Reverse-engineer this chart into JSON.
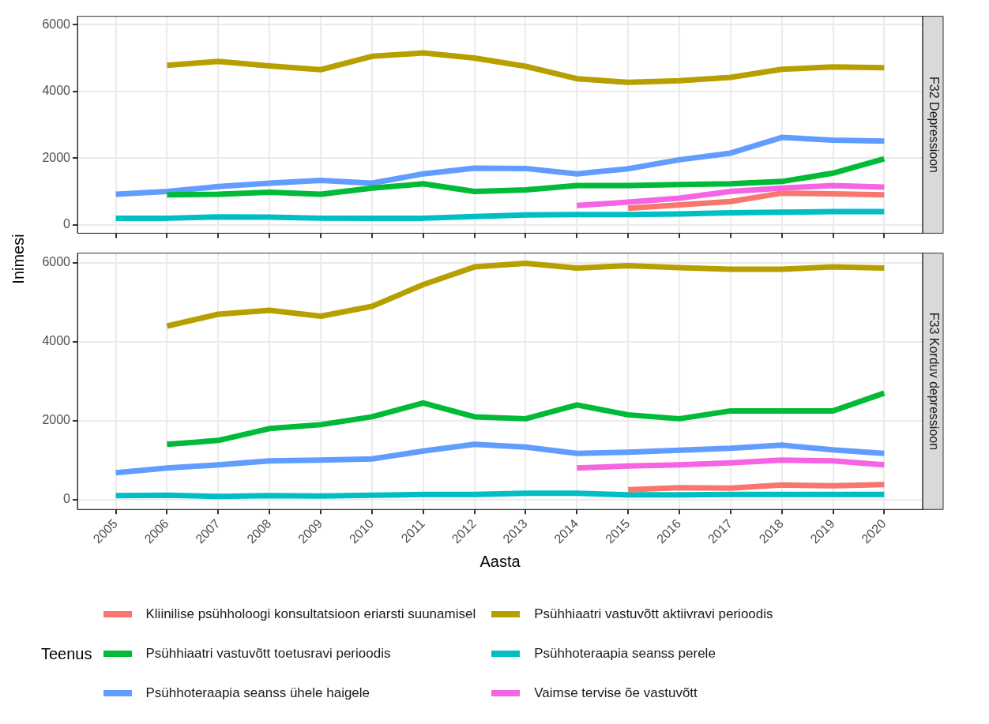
{
  "chart_data": [
    {
      "type": "line",
      "title": "F32 Depressioon",
      "ylabel": "Inimesi",
      "xlim": [
        2004.25,
        2020.75
      ],
      "xticks": [
        2005,
        2006,
        2007,
        2008,
        2009,
        2010,
        2011,
        2012,
        2013,
        2014,
        2015,
        2016,
        2017,
        2018,
        2019,
        2020
      ],
      "ylim": [
        -250,
        6250
      ],
      "yticks": [
        0,
        2000,
        4000,
        6000
      ],
      "tick_labels": "y",
      "grid": true,
      "series": [
        {
          "color": "#f8766d",
          "x": [
            2015,
            2016,
            2017,
            2018,
            2019,
            2020
          ],
          "values": [
            500,
            600,
            700,
            950,
            930,
            900
          ]
        },
        {
          "color": "#b79f00",
          "x": [
            2006,
            2007,
            2008,
            2009,
            2010,
            2011,
            2012,
            2013,
            2014,
            2015,
            2016,
            2017,
            2018,
            2019,
            2020
          ],
          "values": [
            4780,
            4900,
            4760,
            4650,
            5050,
            5150,
            5000,
            4750,
            4380,
            4270,
            4320,
            4420,
            4660,
            4730,
            4710
          ]
        },
        {
          "color": "#00ba38",
          "x": [
            2006,
            2007,
            2008,
            2009,
            2010,
            2011,
            2012,
            2013,
            2014,
            2015,
            2016,
            2017,
            2018,
            2019,
            2020
          ],
          "values": [
            900,
            920,
            980,
            920,
            1100,
            1230,
            1000,
            1050,
            1180,
            1180,
            1210,
            1230,
            1300,
            1550,
            1980
          ]
        },
        {
          "color": "#00bfc4",
          "x": [
            2005,
            2006,
            2007,
            2008,
            2009,
            2010,
            2011,
            2012,
            2013,
            2014,
            2015,
            2016,
            2017,
            2018,
            2019,
            2020
          ],
          "values": [
            200,
            200,
            240,
            230,
            200,
            200,
            200,
            250,
            300,
            310,
            310,
            330,
            360,
            380,
            400,
            400
          ]
        },
        {
          "color": "#619cff",
          "x": [
            2005,
            2006,
            2007,
            2008,
            2009,
            2010,
            2011,
            2012,
            2013,
            2014,
            2015,
            2016,
            2017,
            2018,
            2019,
            2020
          ],
          "values": [
            920,
            1000,
            1150,
            1250,
            1330,
            1250,
            1530,
            1700,
            1690,
            1530,
            1680,
            1950,
            2150,
            2620,
            2540,
            2510
          ]
        },
        {
          "color": "#f564e3",
          "x": [
            2014,
            2015,
            2016,
            2017,
            2018,
            2019,
            2020
          ],
          "values": [
            580,
            680,
            800,
            1000,
            1100,
            1180,
            1130
          ]
        }
      ]
    },
    {
      "type": "line",
      "title": "F33 Korduv depressioon",
      "xlabel": "Aasta",
      "legend_title": "Teenus",
      "legend": "bottom",
      "xlim": [
        2004.25,
        2020.75
      ],
      "xticks": [
        2005,
        2006,
        2007,
        2008,
        2009,
        2010,
        2011,
        2012,
        2013,
        2014,
        2015,
        2016,
        2017,
        2018,
        2019,
        2020
      ],
      "ylim": [
        -250,
        6250
      ],
      "yticks": [
        0,
        2000,
        4000,
        6000
      ],
      "grid": true,
      "series": [
        {
          "name": "Kliinilise psühholoogi konsultatsioon eriarsti suunamisel",
          "color": "#f8766d",
          "x": [
            2015,
            2016,
            2017,
            2018,
            2019,
            2020
          ],
          "values": [
            250,
            300,
            290,
            370,
            350,
            380
          ]
        },
        {
          "name": "Psühhiaatri vastuvõtt aktiivravi perioodis",
          "color": "#b79f00",
          "x": [
            2006,
            2007,
            2008,
            2009,
            2010,
            2011,
            2012,
            2013,
            2014,
            2015,
            2016,
            2017,
            2018,
            2019,
            2020
          ],
          "values": [
            4400,
            4700,
            4800,
            4650,
            4900,
            5450,
            5900,
            5990,
            5870,
            5930,
            5880,
            5840,
            5840,
            5900,
            5870
          ]
        },
        {
          "name": "Psühhiaatri vastuvõtt toetusravi perioodis",
          "color": "#00ba38",
          "x": [
            2006,
            2007,
            2008,
            2009,
            2010,
            2011,
            2012,
            2013,
            2014,
            2015,
            2016,
            2017,
            2018,
            2019,
            2020
          ],
          "values": [
            1400,
            1500,
            1800,
            1900,
            2100,
            2450,
            2100,
            2050,
            2400,
            2150,
            2050,
            2250,
            2250,
            2250,
            2700
          ]
        },
        {
          "name": "Psühhoteraapia seanss perele",
          "color": "#00bfc4",
          "x": [
            2005,
            2006,
            2007,
            2008,
            2009,
            2010,
            2011,
            2012,
            2013,
            2014,
            2015,
            2016,
            2017,
            2018,
            2019,
            2020
          ],
          "values": [
            100,
            110,
            80,
            100,
            90,
            110,
            130,
            130,
            160,
            160,
            120,
            120,
            130,
            130,
            130,
            130
          ]
        },
        {
          "name": "Psühhoteraapia seanss ühele haigele",
          "color": "#619cff",
          "x": [
            2005,
            2006,
            2007,
            2008,
            2009,
            2010,
            2011,
            2012,
            2013,
            2014,
            2015,
            2016,
            2017,
            2018,
            2019,
            2020
          ],
          "values": [
            680,
            800,
            880,
            980,
            1000,
            1030,
            1230,
            1400,
            1330,
            1170,
            1200,
            1250,
            1300,
            1380,
            1260,
            1170
          ]
        },
        {
          "name": "Vaimse tervise õe vastuvõtt",
          "color": "#f564e3",
          "x": [
            2014,
            2015,
            2016,
            2017,
            2018,
            2019,
            2020
          ],
          "values": [
            800,
            850,
            880,
            930,
            1000,
            980,
            880
          ]
        }
      ]
    }
  ]
}
